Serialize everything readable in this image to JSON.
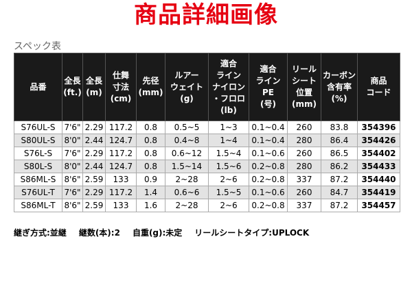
{
  "title": "商品詳細画像",
  "caption": "スペック表",
  "table": {
    "header": [
      [
        "品番"
      ],
      [
        "全長",
        "(ft.)"
      ],
      [
        "全長",
        "(m)"
      ],
      [
        "仕舞",
        "寸法",
        "(cm)"
      ],
      [
        "先径",
        "(mm)"
      ],
      [
        "ルアー",
        "ウェイト",
        "(g)"
      ],
      [
        "適合",
        "ライン",
        "ナイロン",
        "・フロロ",
        "(lb)"
      ],
      [
        "適合",
        "ライン",
        "PE",
        "(号)"
      ],
      [
        "リール",
        "シート",
        "位置",
        "(mm)"
      ],
      [
        "カーボン",
        "含有率",
        "(%)"
      ],
      [
        "商品",
        "コード"
      ]
    ],
    "rows": [
      [
        "S76UL-S",
        "7'6\"",
        "2.29",
        "117.2",
        "0.8",
        "0.5~5",
        "1~3",
        "0.1~0.4",
        "260",
        "83.8",
        "354396"
      ],
      [
        "S80UL-S",
        "8'0\"",
        "2.44",
        "124.7",
        "0.8",
        "0.4~8",
        "1~4",
        "0.1~0.4",
        "280",
        "86.4",
        "354426"
      ],
      [
        "S76L-S",
        "7'6\"",
        "2.29",
        "117.2",
        "0.8",
        "0.6~12",
        "1.5~4",
        "0.1~0.6",
        "260",
        "86.5",
        "354402"
      ],
      [
        "S80L-S",
        "8'0\"",
        "2.44",
        "124.7",
        "0.8",
        "1.5~14",
        "1.5~6",
        "0.2~0.8",
        "280",
        "86.2",
        "354433"
      ],
      [
        "S86ML-S",
        "8'6\"",
        "2.59",
        "133",
        "0.9",
        "2~28",
        "2~6",
        "0.2~0.8",
        "337",
        "87.2",
        "354440"
      ],
      [
        "S76UL-T",
        "7'6\"",
        "2.29",
        "117.2",
        "1.4",
        "0.6~6",
        "1.5~5",
        "0.1~0.6",
        "260",
        "84.7",
        "354419"
      ],
      [
        "S86ML-T",
        "8'6\"",
        "2.59",
        "133",
        "1.6",
        "2~28",
        "2~6",
        "0.2~0.8",
        "337",
        "87.2",
        "354457"
      ]
    ]
  },
  "footer": [
    "継ぎ方式:並継",
    "継数(本):2",
    "自重(g):未定",
    "リールシートタイプ:UPLOCK"
  ]
}
